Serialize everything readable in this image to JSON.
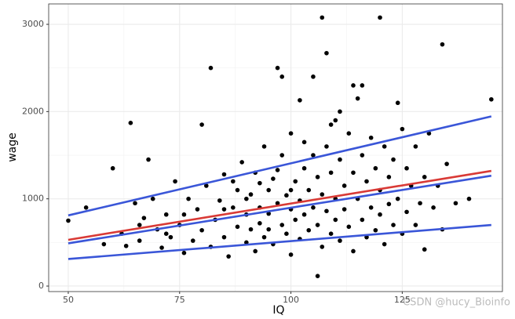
{
  "chart_data": {
    "type": "scatter",
    "x_label": "IQ",
    "y_label": "wage",
    "xlim": [
      45.6,
      147.5
    ],
    "ylim": [
      -63,
      3234
    ],
    "xticks": [
      50,
      75,
      100,
      125
    ],
    "yticks": [
      0,
      1000,
      2000,
      3000
    ],
    "grid": true,
    "color": "#000000",
    "x": [
      50,
      54,
      58,
      60,
      62,
      63,
      64,
      65,
      66,
      67,
      68,
      69,
      70,
      71,
      72,
      73,
      74,
      75,
      76,
      77,
      78,
      79,
      80,
      80,
      81,
      82,
      82,
      83,
      84,
      85,
      85,
      86,
      87,
      88,
      88,
      89,
      90,
      90,
      91,
      91,
      92,
      92,
      93,
      93,
      94,
      94,
      95,
      95,
      96,
      96,
      97,
      97,
      98,
      98,
      98,
      99,
      99,
      100,
      100,
      100,
      101,
      101,
      102,
      102,
      102,
      103,
      103,
      104,
      104,
      105,
      105,
      105,
      106,
      106,
      106,
      107,
      107,
      107,
      108,
      108,
      108,
      109,
      109,
      110,
      110,
      110,
      111,
      111,
      112,
      112,
      113,
      113,
      114,
      114,
      114,
      115,
      115,
      116,
      116,
      116,
      117,
      117,
      118,
      118,
      119,
      119,
      120,
      120,
      120,
      121,
      121,
      122,
      122,
      123,
      123,
      124,
      124,
      125,
      125,
      126,
      126,
      127,
      128,
      128,
      129,
      130,
      130,
      131,
      132,
      133,
      134,
      134,
      135,
      137,
      140,
      145,
      87,
      93,
      97,
      103,
      109,
      111,
      100,
      95,
      90,
      85,
      76,
      72,
      66
    ],
    "values": [
      750,
      900,
      480,
      1350,
      600,
      460,
      1870,
      950,
      520,
      780,
      1450,
      1000,
      650,
      440,
      820,
      560,
      1200,
      700,
      380,
      1000,
      520,
      880,
      1850,
      640,
      1150,
      2500,
      450,
      760,
      980,
      1280,
      560,
      340,
      900,
      680,
      1100,
      1420,
      500,
      820,
      1050,
      650,
      1300,
      400,
      900,
      720,
      1600,
      560,
      1100,
      830,
      1230,
      480,
      2500,
      950,
      2400,
      700,
      1500,
      1040,
      600,
      1750,
      880,
      360,
      1200,
      760,
      2130,
      980,
      540,
      1350,
      820,
      1100,
      640,
      2400,
      1500,
      900,
      115,
      1250,
      700,
      3078,
      1050,
      450,
      2670,
      1600,
      860,
      1300,
      600,
      1900,
      1000,
      760,
      1450,
      520,
      1150,
      880,
      1750,
      680,
      2300,
      1300,
      400,
      2150,
      1000,
      2300,
      1500,
      760,
      1200,
      560,
      1700,
      900,
      1350,
      640,
      3078,
      1100,
      820,
      1600,
      480,
      1250,
      940,
      1450,
      700,
      2100,
      1000,
      1800,
      600,
      1350,
      850,
      1150,
      1600,
      700,
      950,
      420,
      1250,
      1750,
      900,
      1150,
      2770,
      650,
      1400,
      950,
      1000,
      2140,
      1200,
      1180,
      1330,
      1650,
      1850,
      2000,
      1100,
      650,
      1000,
      880,
      820,
      600,
      700
    ],
    "lines": [
      {
        "color": "#3a56d8",
        "x": [
          50,
          145
        ],
        "values": [
          810,
          1945
        ]
      },
      {
        "color": "#3a56d8",
        "x": [
          50,
          145
        ],
        "values": [
          490,
          1265
        ]
      },
      {
        "color": "#3a56d8",
        "x": [
          50,
          145
        ],
        "values": [
          310,
          700
        ]
      },
      {
        "color": "#d93a36",
        "x": [
          50,
          145
        ],
        "values": [
          530,
          1320
        ]
      }
    ],
    "annotation": "CSDN @hucy_Bioinfo"
  }
}
